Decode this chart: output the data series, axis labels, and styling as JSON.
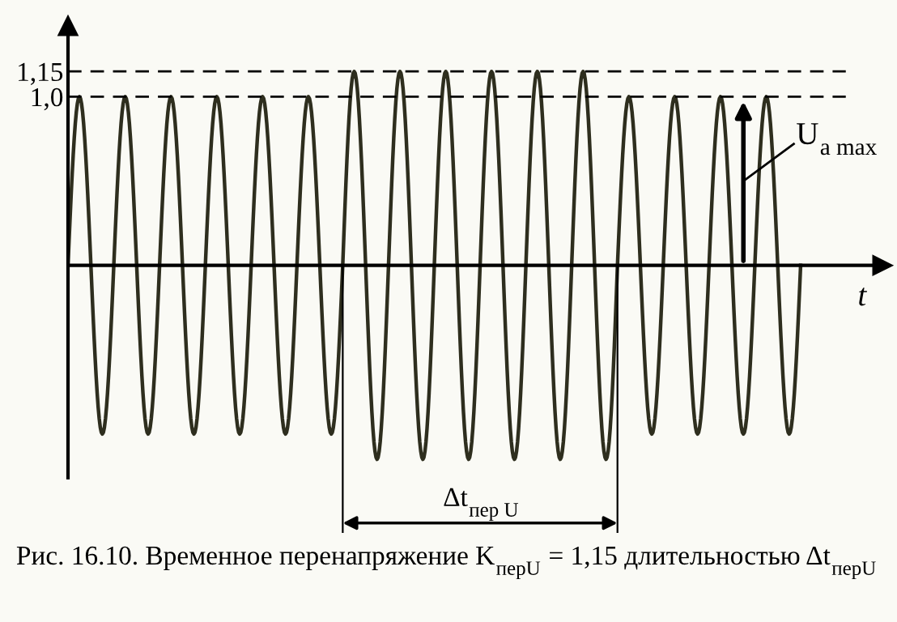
{
  "chart_data": {
    "type": "line",
    "xlabel": "t",
    "categories": [
      null,
      null,
      null,
      null,
      null,
      null,
      null,
      null,
      null,
      null,
      null,
      null,
      null,
      null,
      null,
      null,
      null,
      null,
      null,
      null,
      null,
      null,
      null,
      null,
      null,
      null,
      null,
      null,
      null,
      null,
      null,
      null,
      null,
      null,
      null,
      null,
      null,
      null,
      null,
      null,
      null,
      null,
      null,
      null,
      null,
      null,
      null,
      null,
      null,
      null,
      null,
      null,
      null,
      null,
      null,
      null,
      null,
      null,
      null,
      null,
      null,
      null,
      null,
      null,
      null
    ],
    "series": [
      {
        "color": "#2e2e1e",
        "values": [
          0,
          1.0,
          0,
          -1.0,
          0,
          1.0,
          0,
          -1.0,
          0,
          1.0,
          0,
          -1.0,
          0,
          1.0,
          0,
          -1.0,
          0,
          1.0,
          0,
          -1.0,
          0,
          1.0,
          0,
          -1.0,
          0,
          1.15,
          0,
          -1.15,
          0,
          1.15,
          0,
          -1.15,
          0,
          1.15,
          0,
          -1.15,
          0,
          1.15,
          0,
          -1.15,
          0,
          1.15,
          0,
          -1.15,
          0,
          1.15,
          0,
          -1.15,
          0,
          1.0,
          0,
          -1.0,
          0,
          1.0,
          0,
          -1.0,
          0,
          1.0,
          0,
          -1.0,
          0,
          1.0,
          0,
          -1.0,
          0
        ]
      }
    ],
    "ylim": [
      -1.26,
      1.42
    ],
    "yticks": [
      {
        "value": 1.0,
        "label": "1,0"
      },
      {
        "value": 1.15,
        "label": "1,15"
      }
    ],
    "ref_lines": [
      {
        "axis": "y",
        "value": 1.0,
        "line_style": "dashed",
        "color": "#000000"
      },
      {
        "axis": "y",
        "value": 1.15,
        "line_style": "dashed",
        "color": "#000000"
      }
    ],
    "annotations": [
      "U$_{a max}$",
      "Δt$_{пер U}$",
      "Рис. 16.10. Временное перенапряжение K$_{перU}$ = 1,15 длительностью Δt$_{перU}$"
    ]
  }
}
